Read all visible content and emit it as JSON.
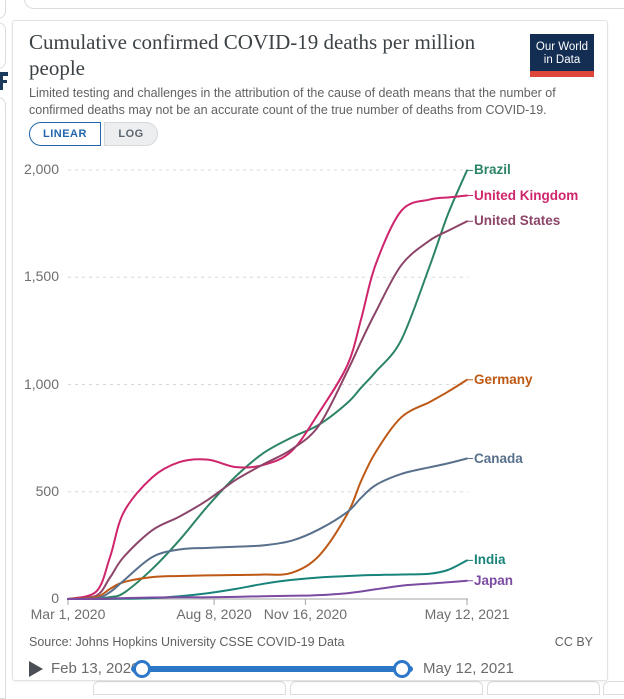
{
  "header": {
    "title": "Cumulative confirmed COVID-19 deaths per million people",
    "subtitle": "Limited testing and challenges in the attribution of the cause of death means that the number of confirmed deaths may not be an accurate count of the true number of deaths from COVID-19.",
    "logo": {
      "line1": "Our World",
      "line2": "in Data",
      "bg_color": "#132e52",
      "accent_color": "#de453b"
    }
  },
  "toggle": {
    "linear": "LINEAR",
    "log": "LOG",
    "active": "LINEAR",
    "active_color": "#2166ac"
  },
  "chart_data": {
    "type": "line",
    "title": "Cumulative confirmed COVID-19 deaths per million people",
    "xlabel": "",
    "ylabel": "",
    "ylim": [
      0,
      2000
    ],
    "grid": "dashed horizontal",
    "legend_position": "right-end-of-line",
    "yticks": [
      {
        "value": 0,
        "label": "0"
      },
      {
        "value": 500,
        "label": "500"
      },
      {
        "value": 1000,
        "label": "1,000"
      },
      {
        "value": 1500,
        "label": "1,500"
      },
      {
        "value": 2000,
        "label": "2,000"
      }
    ],
    "xticks": [
      {
        "day": 0,
        "label": "Mar 1, 2020"
      },
      {
        "day": 160,
        "label": "Aug 8, 2020"
      },
      {
        "day": 260,
        "label": "Nov 16, 2020"
      },
      {
        "day": 437,
        "label": "May 12, 2021"
      }
    ],
    "x_unit": "days since Mar 1, 2020",
    "days": [
      0,
      31,
      46,
      61,
      92,
      122,
      153,
      184,
      214,
      245,
      275,
      306,
      321,
      337,
      365,
      396,
      416,
      437
    ],
    "series": [
      {
        "name": "Brazil",
        "color": "#2C8465",
        "values": [
          0,
          1,
          9,
          28,
          139,
          274,
          433,
          573,
          680,
          753,
          813,
          914,
          985,
          1059,
          1208,
          1551,
          1792,
          1998
        ]
      },
      {
        "name": "United Kingdom",
        "color": "#CF256C",
        "values": [
          0,
          35,
          195,
          404,
          566,
          638,
          650,
          615,
          625,
          690,
          870,
          1090,
          1305,
          1560,
          1810,
          1862,
          1872,
          1881
        ]
      },
      {
        "name": "United States",
        "color": "#8C4569",
        "values": [
          0,
          16,
          100,
          196,
          320,
          384,
          462,
          556,
          628,
          698,
          810,
          1063,
          1200,
          1338,
          1556,
          1671,
          1716,
          1761
        ]
      },
      {
        "name": "Germany",
        "color": "#BE5915",
        "values": [
          0,
          9,
          47,
          79,
          102,
          107,
          110,
          112,
          114,
          122,
          202,
          397,
          550,
          685,
          847,
          918,
          966,
          1022
        ]
      },
      {
        "name": "Canada",
        "color": "#58708C",
        "values": [
          0,
          3,
          32,
          86,
          195,
          231,
          238,
          244,
          250,
          272,
          325,
          406,
          472,
          531,
          583,
          614,
          632,
          655
        ]
      },
      {
        "name": "India",
        "color": "#17837A",
        "values": [
          0,
          0,
          0.3,
          1,
          4,
          13,
          27,
          47,
          71,
          89,
          100,
          107,
          110,
          112,
          114,
          118,
          135,
          180
        ]
      },
      {
        "name": "Japan",
        "color": "#7B4BA2",
        "values": [
          0,
          0.4,
          1.5,
          4,
          7,
          8,
          8,
          10,
          13,
          15,
          18,
          27,
          35,
          45,
          62,
          72,
          78,
          85
        ]
      }
    ]
  },
  "footer": {
    "source": "Source: Johns Hopkins University CSSE COVID-19 Data",
    "license": "CC BY"
  },
  "timeline": {
    "start": "Feb 13, 2020",
    "end": "May 12, 2021",
    "color": "#2d77c9"
  }
}
